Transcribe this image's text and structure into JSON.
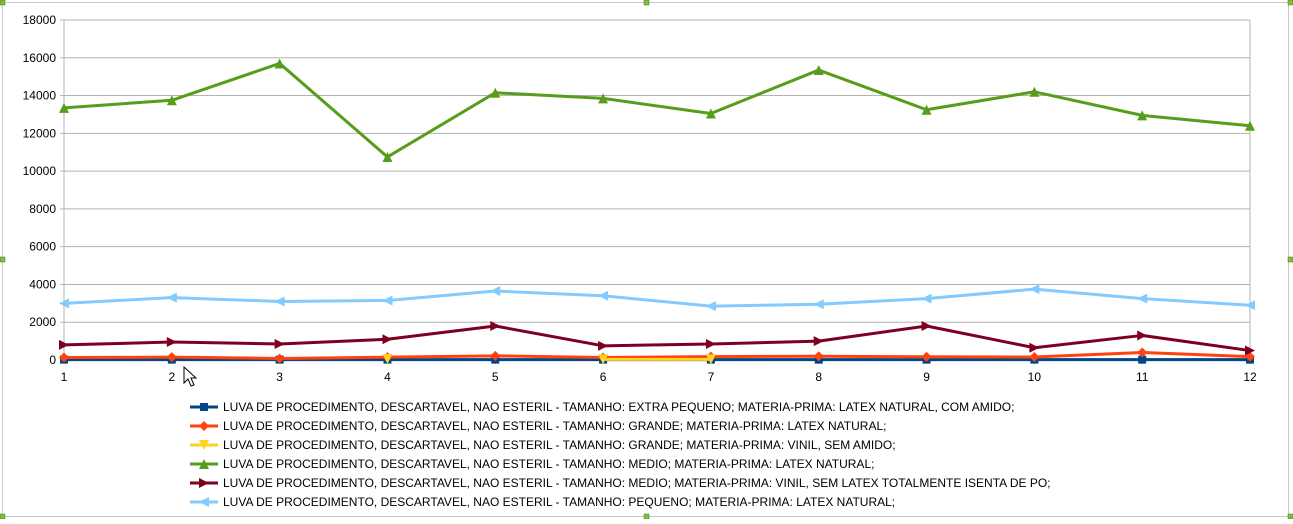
{
  "chart_data": {
    "type": "line",
    "title": "",
    "xlabel": "",
    "ylabel": "",
    "x": [
      1,
      2,
      3,
      4,
      5,
      6,
      7,
      8,
      9,
      10,
      11,
      12
    ],
    "ylim": [
      0,
      18000
    ],
    "yticks": [
      0,
      2000,
      4000,
      6000,
      8000,
      10000,
      12000,
      14000,
      16000,
      18000
    ],
    "grid": true,
    "legend_position": "bottom",
    "series": [
      {
        "name": "LUVA DE PROCEDIMENTO, DESCARTAVEL, NAO ESTERIL - TAMANHO: EXTRA PEQUENO; MATERIA-PRIMA: LATEX NATURAL, COM AMIDO;",
        "color": "#004586",
        "marker": "square",
        "values": [
          20,
          20,
          20,
          20,
          20,
          20,
          20,
          20,
          20,
          20,
          20,
          20
        ]
      },
      {
        "name": "LUVA DE PROCEDIMENTO, DESCARTAVEL, NAO ESTERIL - TAMANHO: GRANDE; MATERIA-PRIMA: LATEX NATURAL;",
        "color": "#ff420e",
        "marker": "diamond",
        "values": [
          130,
          150,
          80,
          150,
          220,
          130,
          180,
          200,
          170,
          160,
          400,
          180
        ]
      },
      {
        "name": "LUVA DE PROCEDIMENTO, DESCARTAVEL, NAO ESTERIL - TAMANHO: GRANDE; MATERIA-PRIMA: VINIL, SEM AMIDO;",
        "color": "#ffd320",
        "marker": "triangle-down",
        "values": [
          null,
          null,
          null,
          50,
          null,
          30,
          30,
          null,
          null,
          null,
          null,
          null
        ]
      },
      {
        "name": "LUVA DE PROCEDIMENTO, DESCARTAVEL, NAO ESTERIL - TAMANHO: MEDIO; MATERIA-PRIMA: LATEX NATURAL;",
        "color": "#579d1c",
        "marker": "triangle-up",
        "values": [
          13350,
          13750,
          15700,
          10750,
          14150,
          13850,
          13050,
          15350,
          13250,
          14200,
          12950,
          12400
        ]
      },
      {
        "name": "LUVA DE PROCEDIMENTO, DESCARTAVEL, NAO ESTERIL - TAMANHO: MEDIO; MATERIA-PRIMA: VINIL, SEM LATEX TOTALMENTE ISENTA DE PO;",
        "color": "#7e0021",
        "marker": "triangle-right",
        "values": [
          800,
          950,
          850,
          1100,
          1800,
          750,
          850,
          1000,
          1800,
          650,
          1300,
          500
        ]
      },
      {
        "name": "LUVA DE PROCEDIMENTO, DESCARTAVEL, NAO ESTERIL - TAMANHO: PEQUENO; MATERIA-PRIMA: LATEX NATURAL;",
        "color": "#83caff",
        "marker": "triangle-left",
        "values": [
          3000,
          3300,
          3100,
          3150,
          3650,
          3400,
          2850,
          2950,
          3250,
          3750,
          3250,
          2900
        ]
      }
    ]
  }
}
